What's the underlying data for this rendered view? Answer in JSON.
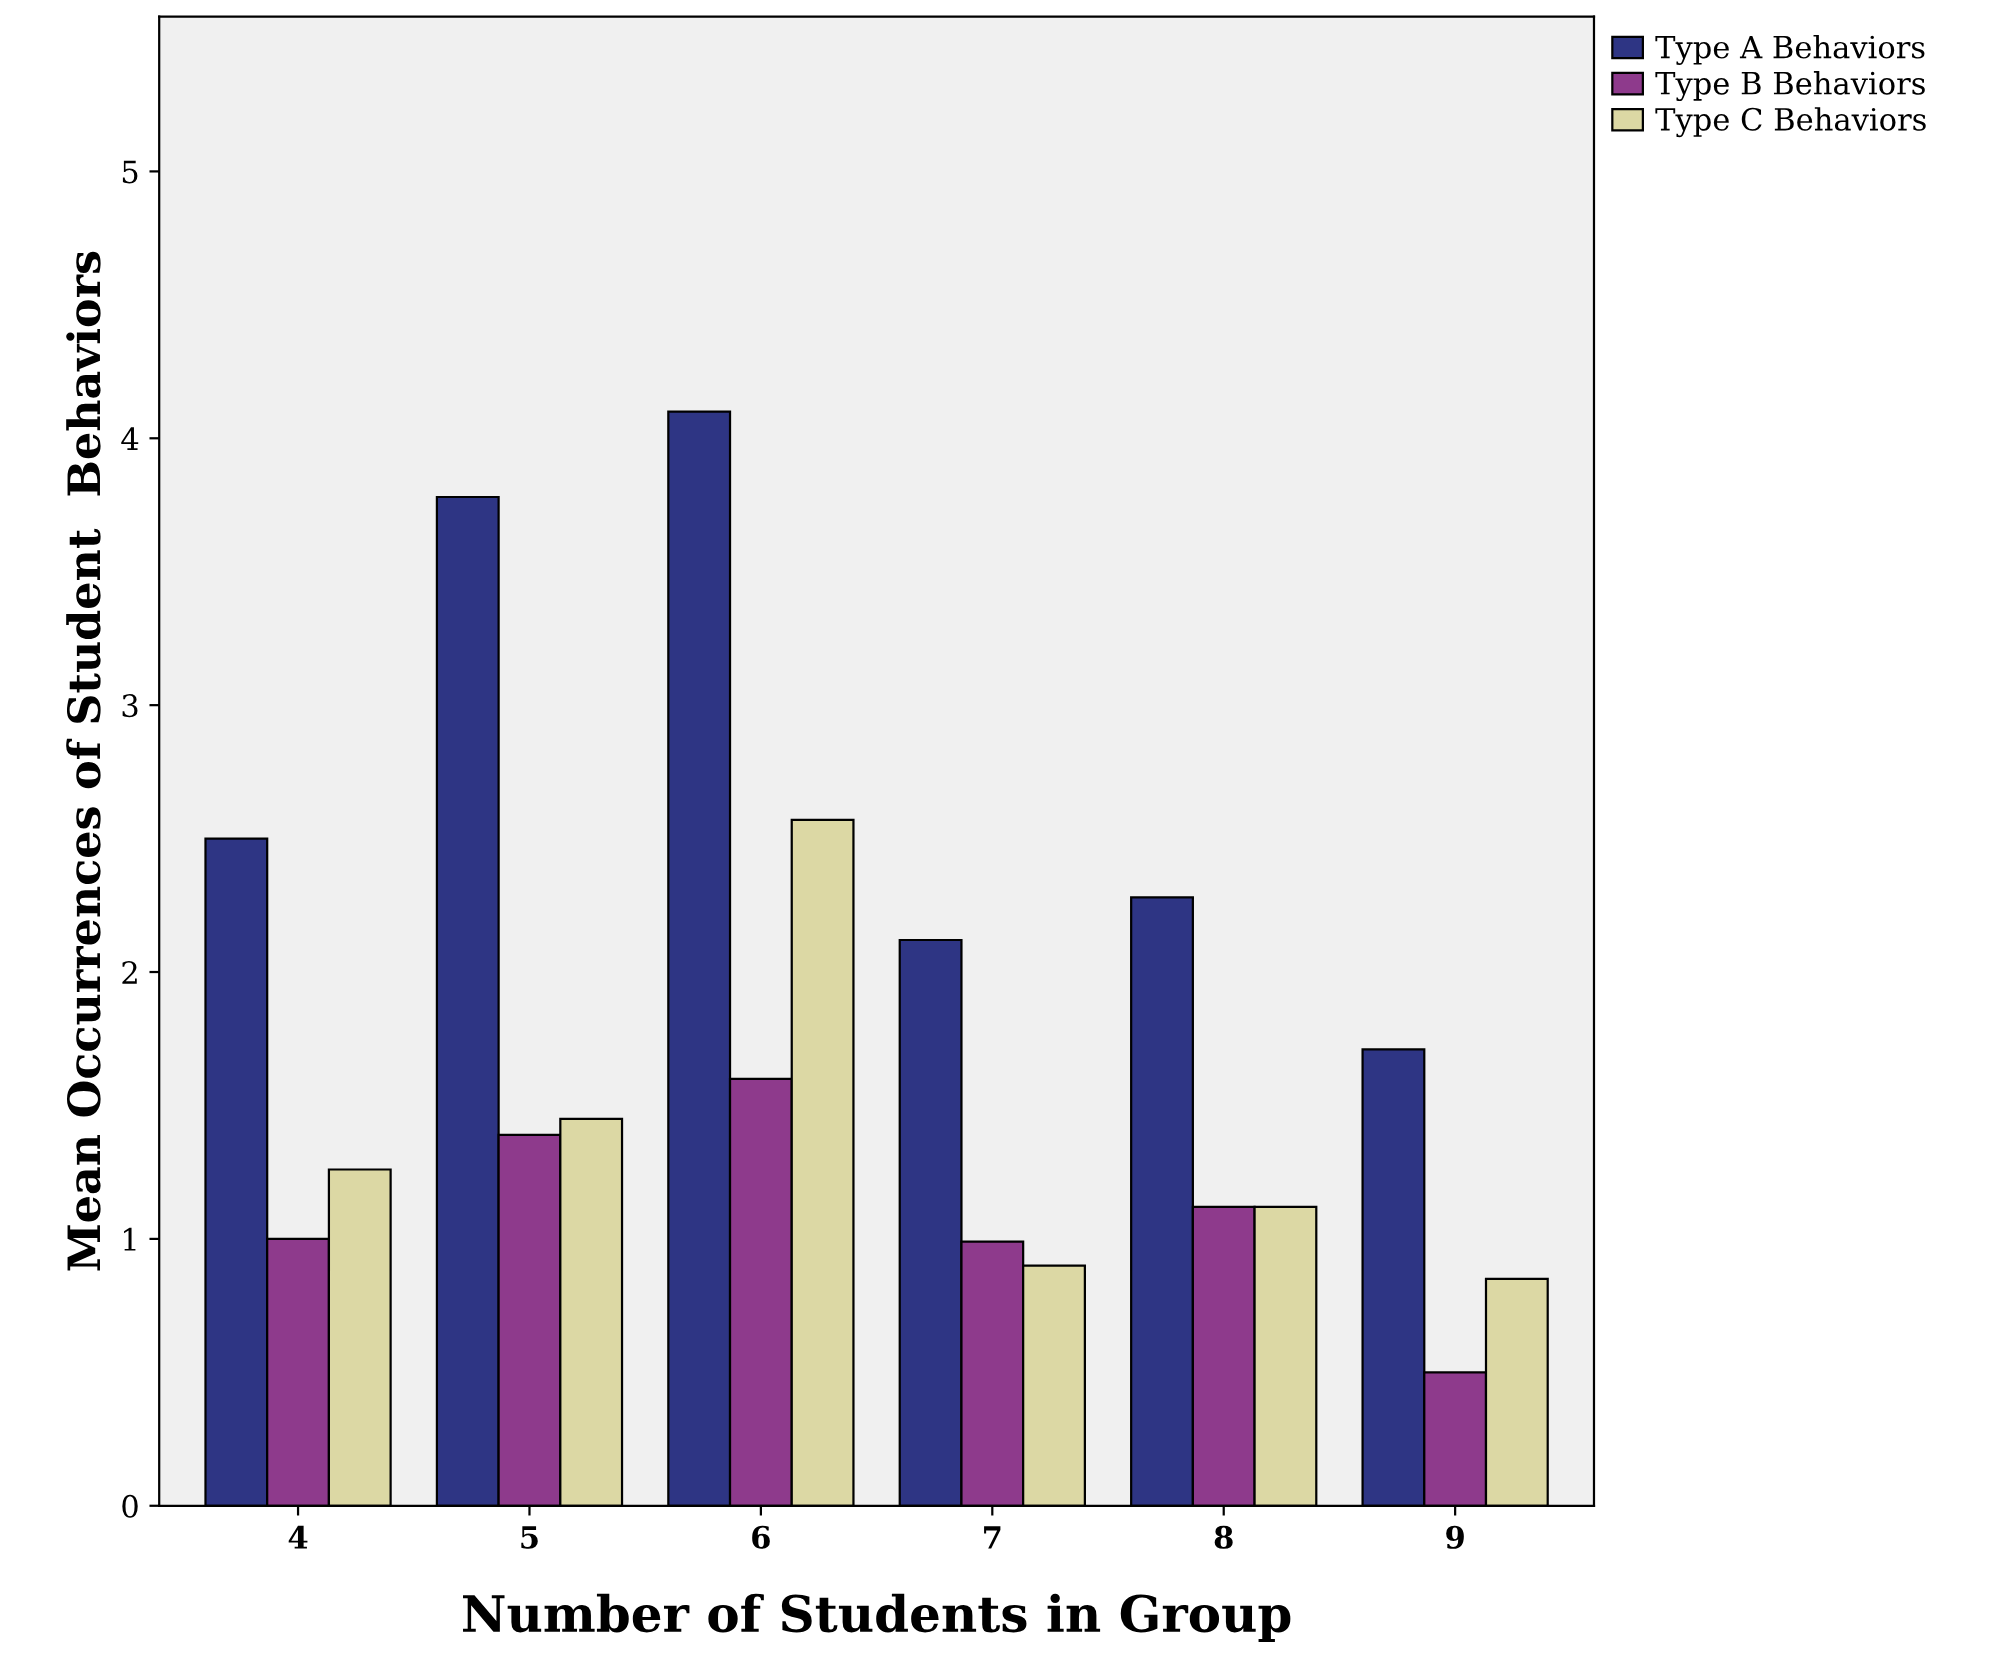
{
  "chart_data": {
    "type": "bar",
    "xlabel": "Number of Students in Group",
    "ylabel": "Mean Occurrences of Student  Behaviors",
    "categories": [
      "4",
      "5",
      "6",
      "7",
      "8",
      "9"
    ],
    "series": [
      {
        "name": "Type A Behaviors",
        "color": "#2e3584",
        "values": [
          2.5,
          3.78,
          4.1,
          2.12,
          2.28,
          1.71
        ]
      },
      {
        "name": "Type B Behaviors",
        "color": "#8e3a8c",
        "values": [
          1.0,
          1.39,
          1.6,
          0.99,
          1.12,
          0.5
        ]
      },
      {
        "name": "Type C Behaviors",
        "color": "#dcd8a4",
        "values": [
          1.26,
          1.45,
          2.57,
          0.9,
          1.12,
          0.85
        ]
      }
    ],
    "ylim": [
      0,
      5.58
    ],
    "yticks": [
      0,
      1,
      2,
      3,
      4,
      5
    ],
    "grid": false,
    "legend": "top right"
  }
}
